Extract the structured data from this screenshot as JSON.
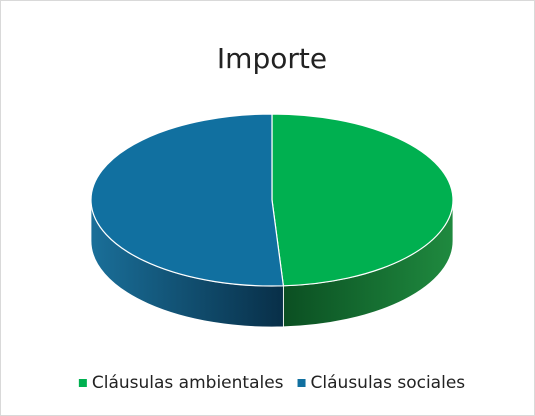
{
  "chart_data": {
    "type": "pie",
    "title": "Importe",
    "categories": [
      "Cláusulas ambientales",
      "Cláusulas sociales"
    ],
    "values": [
      49,
      51
    ],
    "colors": [
      "#00b050",
      "#1170a0"
    ],
    "legend": "bottom"
  }
}
